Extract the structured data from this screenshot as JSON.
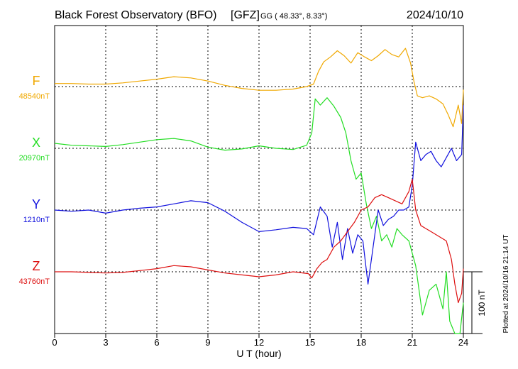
{
  "header": {
    "title": "Black Forest Observatory (BFO)",
    "institute": "[GFZ]",
    "coords": "GG ( 48.33°,   8.33°)",
    "date": "2024/10/10"
  },
  "footer": {
    "plotted": "Plotted at 2024/10/16 21:14 UT"
  },
  "chart_data": {
    "type": "line",
    "xlabel": "U T (hour)",
    "xlim": [
      0,
      24
    ],
    "xticks": [
      0,
      3,
      6,
      9,
      12,
      15,
      18,
      21,
      24
    ],
    "scale_bar": "100 nT",
    "grid": true,
    "series": [
      {
        "name": "F",
        "baseline": "48540nT",
        "color": "#f0a800",
        "x": [
          0,
          1,
          2,
          3,
          4,
          5,
          6,
          7,
          8,
          9,
          10,
          11,
          12,
          13,
          14,
          14.8,
          15.2,
          15.5,
          15.8,
          16.2,
          16.6,
          17,
          17.4,
          17.8,
          18.2,
          18.6,
          19,
          19.4,
          19.8,
          20.2,
          20.6,
          20.9,
          21.1,
          21.3,
          21.6,
          22,
          22.4,
          22.8,
          23.1,
          23.4,
          23.7,
          23.9,
          24
        ],
        "y": [
          5,
          5,
          4,
          4,
          6,
          9,
          12,
          16,
          14,
          9,
          2,
          -3,
          -6,
          -6,
          -4,
          0,
          4,
          25,
          40,
          48,
          58,
          50,
          38,
          55,
          48,
          42,
          50,
          60,
          52,
          48,
          62,
          38,
          8,
          -15,
          -18,
          -15,
          -20,
          -28,
          -45,
          -65,
          -30,
          -60,
          -5
        ]
      },
      {
        "name": "X",
        "baseline": "20970nT",
        "color": "#22dd22",
        "x": [
          0,
          1,
          2,
          3,
          4,
          5,
          6,
          7,
          8,
          9,
          10,
          11,
          12,
          13,
          14,
          14.8,
          15.1,
          15.3,
          15.6,
          16,
          16.4,
          16.8,
          17.1,
          17.4,
          17.7,
          18,
          18.3,
          18.6,
          18.9,
          19.2,
          19.5,
          19.8,
          20.1,
          20.4,
          20.8,
          21.2,
          21.6,
          22,
          22.4,
          22.8,
          23,
          23.2,
          23.5,
          23.8,
          24
        ],
        "y": [
          8,
          5,
          4,
          3,
          6,
          10,
          14,
          16,
          12,
          2,
          -3,
          -1,
          4,
          0,
          -2,
          5,
          25,
          80,
          70,
          82,
          68,
          50,
          25,
          -20,
          -50,
          -40,
          -90,
          -130,
          -110,
          -150,
          -140,
          -160,
          -130,
          -140,
          -150,
          -190,
          -270,
          -230,
          -220,
          -260,
          -200,
          -280,
          -320,
          -300,
          -250
        ]
      },
      {
        "name": "Y",
        "baseline": "1210nT",
        "color": "#1010dd",
        "x": [
          0,
          1,
          2,
          3,
          4,
          5,
          6,
          7,
          8,
          9,
          10,
          11,
          12,
          13,
          14,
          14.8,
          15.2,
          15.6,
          16,
          16.3,
          16.6,
          16.9,
          17.2,
          17.5,
          17.8,
          18.1,
          18.4,
          18.7,
          19,
          19.3,
          19.6,
          19.9,
          20.2,
          20.5,
          20.8,
          21,
          21.2,
          21.5,
          21.8,
          22.1,
          22.4,
          22.7,
          23,
          23.3,
          23.6,
          23.9,
          24
        ],
        "y": [
          0,
          -2,
          0,
          -5,
          0,
          3,
          5,
          10,
          15,
          12,
          -2,
          -20,
          -35,
          -32,
          -28,
          -30,
          -40,
          5,
          -10,
          -60,
          -20,
          -80,
          -30,
          -70,
          -40,
          -50,
          -120,
          -60,
          0,
          -25,
          -15,
          -10,
          0,
          0,
          5,
          40,
          110,
          80,
          90,
          95,
          80,
          70,
          85,
          100,
          80,
          90,
          170
        ]
      },
      {
        "name": "Z",
        "baseline": "43760nT",
        "color": "#dd1010",
        "x": [
          0,
          1,
          2,
          3,
          4,
          5,
          6,
          7,
          8,
          9,
          10,
          11,
          12,
          13,
          14,
          14.9,
          15.1,
          15.4,
          15.7,
          16,
          16.4,
          16.8,
          17.2,
          17.6,
          18,
          18.4,
          18.8,
          19.2,
          19.6,
          20,
          20.4,
          20.8,
          21,
          21.2,
          21.5,
          21.8,
          22.1,
          22.4,
          22.7,
          23,
          23.3,
          23.5,
          23.7,
          23.9,
          24
        ],
        "y": [
          0,
          0,
          -1,
          -2,
          -1,
          2,
          5,
          10,
          8,
          3,
          -2,
          -5,
          -8,
          -5,
          0,
          -3,
          -10,
          5,
          15,
          20,
          40,
          50,
          65,
          80,
          100,
          105,
          120,
          125,
          120,
          115,
          110,
          130,
          150,
          100,
          75,
          70,
          65,
          60,
          55,
          50,
          20,
          -20,
          -50,
          -35,
          5
        ]
      }
    ]
  }
}
